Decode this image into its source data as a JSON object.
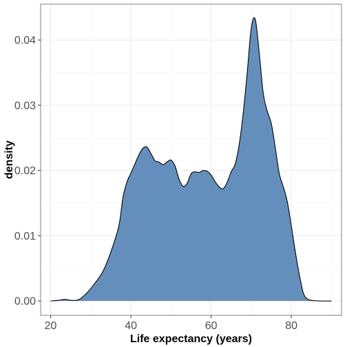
{
  "chart_data": {
    "type": "area",
    "xlabel": "Life expectancy (years)",
    "ylabel": "density",
    "xlim": [
      17.5,
      92.5
    ],
    "ylim": [
      -0.0022,
      0.0455
    ],
    "x_ticks": [
      20,
      40,
      60,
      80
    ],
    "y_ticks": [
      0.0,
      0.01,
      0.02,
      0.03,
      0.04
    ],
    "x_tick_labels": [
      "20",
      "40",
      "60",
      "80"
    ],
    "y_tick_labels": [
      "0.00",
      "0.01",
      "0.02",
      "0.03",
      "0.04"
    ],
    "grid": true,
    "fill_color": "#4f7fb3",
    "line_color": "#000000",
    "series": [
      {
        "x": [
          20,
          22,
          23.5,
          25,
          27,
          29,
          31,
          33,
          35,
          37,
          38,
          39,
          40,
          41,
          42,
          43,
          44,
          45,
          46,
          47,
          48,
          49,
          50,
          51,
          52,
          53,
          54,
          55,
          56,
          57,
          58,
          59,
          60,
          61,
          62,
          63,
          64,
          65,
          66,
          67,
          68,
          69,
          70,
          71,
          72,
          73,
          74,
          75,
          76,
          77,
          78,
          79,
          80,
          81,
          82,
          83,
          84,
          85,
          87,
          90
        ],
        "y": [
          0.0,
          0.0001,
          0.00025,
          0.0001,
          0.0002,
          0.0012,
          0.0027,
          0.0045,
          0.0075,
          0.0115,
          0.0158,
          0.0182,
          0.0196,
          0.021,
          0.0224,
          0.0234,
          0.0236,
          0.0226,
          0.0215,
          0.0213,
          0.0209,
          0.0213,
          0.0216,
          0.0207,
          0.0187,
          0.0176,
          0.018,
          0.0195,
          0.0198,
          0.0197,
          0.02,
          0.0199,
          0.0193,
          0.0183,
          0.0175,
          0.0172,
          0.0182,
          0.0198,
          0.021,
          0.024,
          0.0288,
          0.035,
          0.0418,
          0.0432,
          0.038,
          0.0318,
          0.0291,
          0.0272,
          0.0235,
          0.0195,
          0.0175,
          0.0152,
          0.0115,
          0.0075,
          0.004,
          0.0012,
          0.0003,
          0.0001,
          0.0,
          0.0
        ]
      }
    ]
  }
}
